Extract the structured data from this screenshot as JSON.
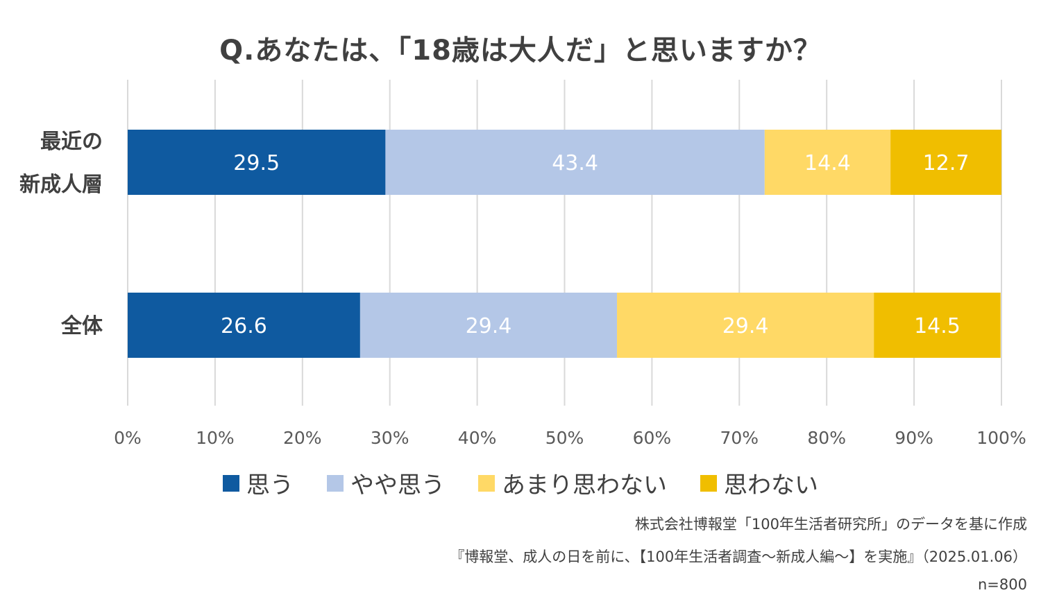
{
  "chart_data": {
    "type": "bar",
    "orientation": "horizontal",
    "stacked": "100%",
    "title": "Q.あなたは、「18歳は大人だ」と思いますか？",
    "categories": [
      {
        "lines": [
          "最近の",
          "新成人層"
        ]
      },
      {
        "lines": [
          "全体"
        ]
      }
    ],
    "series": [
      {
        "name": "思う",
        "color": "#0f5aa0",
        "label_color": "#ffffff",
        "values": [
          29.5,
          26.6
        ]
      },
      {
        "name": "やや思う",
        "color": "#b4c7e7",
        "label_color": "#ffffff",
        "values": [
          43.4,
          29.4
        ]
      },
      {
        "name": "あまり思わない",
        "color": "#ffd966",
        "label_color": "#ffffff",
        "values": [
          14.4,
          29.4
        ]
      },
      {
        "name": "思わない",
        "color": "#f0be00",
        "label_color": "#ffffff",
        "values": [
          12.7,
          14.5
        ]
      }
    ],
    "xlim": [
      0,
      100
    ],
    "xticks": [
      "0%",
      "10%",
      "20%",
      "30%",
      "40%",
      "50%",
      "60%",
      "70%",
      "80%",
      "90%",
      "100%"
    ],
    "grid": "vertical",
    "legend_position": "bottom"
  },
  "source": {
    "line1": "株式会社博報堂「100年生活者研究所」のデータを基に作成",
    "line2": "『博報堂、成人の日を前に、【100年生活者調査～新成人編～】を実施』（2025.01.06）",
    "line3": "n=800"
  }
}
